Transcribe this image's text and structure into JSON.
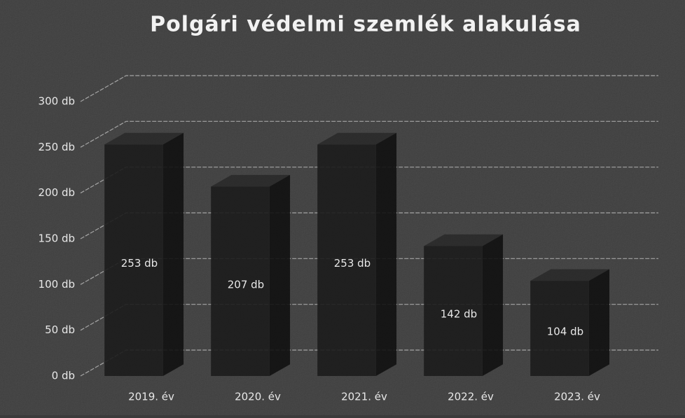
{
  "chart_data": {
    "type": "bar3d",
    "title": "Polgári védelmi szemlék alakulása",
    "categories": [
      "2019. év",
      "2020. év",
      "2021. év",
      "2022. év",
      "2023. év"
    ],
    "values": [
      253,
      207,
      253,
      142,
      104
    ],
    "value_labels": [
      "253 db",
      "207 db",
      "253 db",
      "142 db",
      "104 db"
    ],
    "color": "#1c1c1c",
    "ylim": [
      0,
      300
    ],
    "yticks": [
      {
        "value": 0,
        "label": "0 db"
      },
      {
        "value": 50,
        "label": "50 db"
      },
      {
        "value": 100,
        "label": "100 db"
      },
      {
        "value": 150,
        "label": "150 db"
      },
      {
        "value": 200,
        "label": "200 db"
      },
      {
        "value": 250,
        "label": "250 db"
      },
      {
        "value": 300,
        "label": "300 db"
      }
    ],
    "grid": true
  }
}
